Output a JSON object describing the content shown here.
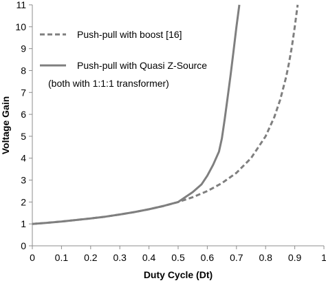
{
  "chart_data": {
    "type": "line",
    "xlabel": "Duty Cycle (Dt)",
    "ylabel": "Voltage Gain",
    "xlim": [
      0,
      1
    ],
    "ylim": [
      0,
      11
    ],
    "xticks": [
      "0",
      "0.1",
      "0.2",
      "0.3",
      "0.4",
      "0.5",
      "0.6",
      "0.7",
      "0.8",
      "0.9",
      "1"
    ],
    "yticks": [
      "0",
      "1",
      "2",
      "3",
      "4",
      "5",
      "6",
      "7",
      "8",
      "9",
      "10",
      "11"
    ],
    "grid": false,
    "legend_position": "top-left",
    "note": "(both with 1:1:1 transformer)",
    "series": [
      {
        "name": "Push-pull with boost [16]",
        "style": "dashed",
        "color": "#7f7f7f",
        "points": [
          [
            0,
            1.0
          ],
          [
            0.05,
            1.05
          ],
          [
            0.1,
            1.11
          ],
          [
            0.15,
            1.18
          ],
          [
            0.2,
            1.25
          ],
          [
            0.25,
            1.33
          ],
          [
            0.3,
            1.43
          ],
          [
            0.35,
            1.54
          ],
          [
            0.4,
            1.67
          ],
          [
            0.45,
            1.82
          ],
          [
            0.5,
            2.0
          ],
          [
            0.55,
            2.22
          ],
          [
            0.6,
            2.5
          ],
          [
            0.65,
            2.86
          ],
          [
            0.7,
            3.33
          ],
          [
            0.75,
            4.0
          ],
          [
            0.8,
            5.0
          ],
          [
            0.83,
            5.88
          ],
          [
            0.85,
            6.67
          ],
          [
            0.87,
            7.69
          ],
          [
            0.88,
            8.33
          ],
          [
            0.89,
            9.09
          ],
          [
            0.9,
            10.0
          ],
          [
            0.91,
            11.0
          ]
        ]
      },
      {
        "name": "Push-pull with Quasi Z-Source",
        "style": "solid",
        "color": "#7f7f7f",
        "points": [
          [
            0,
            1.0
          ],
          [
            0.05,
            1.05
          ],
          [
            0.1,
            1.11
          ],
          [
            0.15,
            1.18
          ],
          [
            0.2,
            1.25
          ],
          [
            0.25,
            1.33
          ],
          [
            0.3,
            1.43
          ],
          [
            0.35,
            1.54
          ],
          [
            0.4,
            1.67
          ],
          [
            0.45,
            1.82
          ],
          [
            0.5,
            2.0
          ],
          [
            0.55,
            2.45
          ],
          [
            0.58,
            2.8
          ],
          [
            0.6,
            3.2
          ],
          [
            0.62,
            3.7
          ],
          [
            0.64,
            4.3
          ],
          [
            0.65,
            4.9
          ],
          [
            0.66,
            5.8
          ],
          [
            0.67,
            6.8
          ],
          [
            0.68,
            7.8
          ],
          [
            0.69,
            8.9
          ],
          [
            0.7,
            10.0
          ],
          [
            0.71,
            11.0
          ]
        ]
      }
    ]
  }
}
